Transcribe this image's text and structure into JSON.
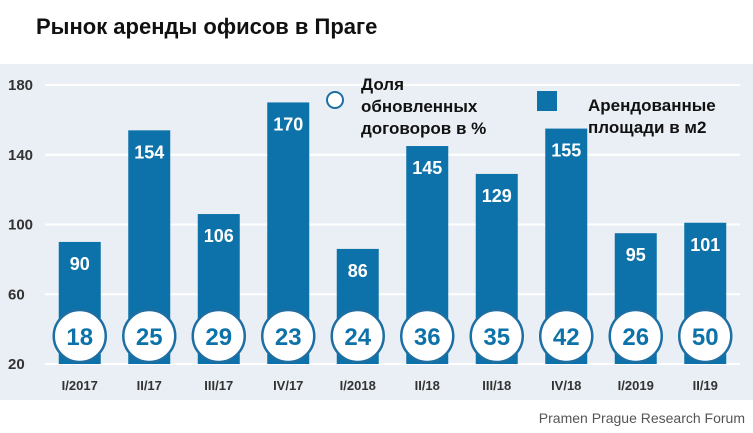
{
  "chart_data": {
    "type": "bar",
    "title": "Рынок аренды офисов в Праге",
    "categories": [
      "I/2017",
      "II/17",
      "III/17",
      "IV/17",
      "I/2018",
      "II/18",
      "III/18",
      "IV/18",
      "I/2019",
      "II/19"
    ],
    "series": [
      {
        "name": "Арендованные площади в м2",
        "values": [
          90,
          154,
          106,
          170,
          86,
          145,
          129,
          155,
          95,
          101
        ]
      },
      {
        "name": "Доля обновленных договоров в %",
        "values": [
          18,
          25,
          29,
          23,
          24,
          36,
          35,
          42,
          26,
          50
        ]
      }
    ],
    "yticks": [
      20,
      60,
      100,
      140,
      180
    ],
    "ylim": [
      20,
      180
    ],
    "grid": true,
    "legend": "top-center",
    "xlabel": "",
    "ylabel": "",
    "source": "Pramen Prague Research Forum",
    "colors": {
      "bar": "#0d72a9",
      "circle_border": "#1d6fa3",
      "panel": "#e9eff4",
      "grid": "#ffffff"
    }
  }
}
